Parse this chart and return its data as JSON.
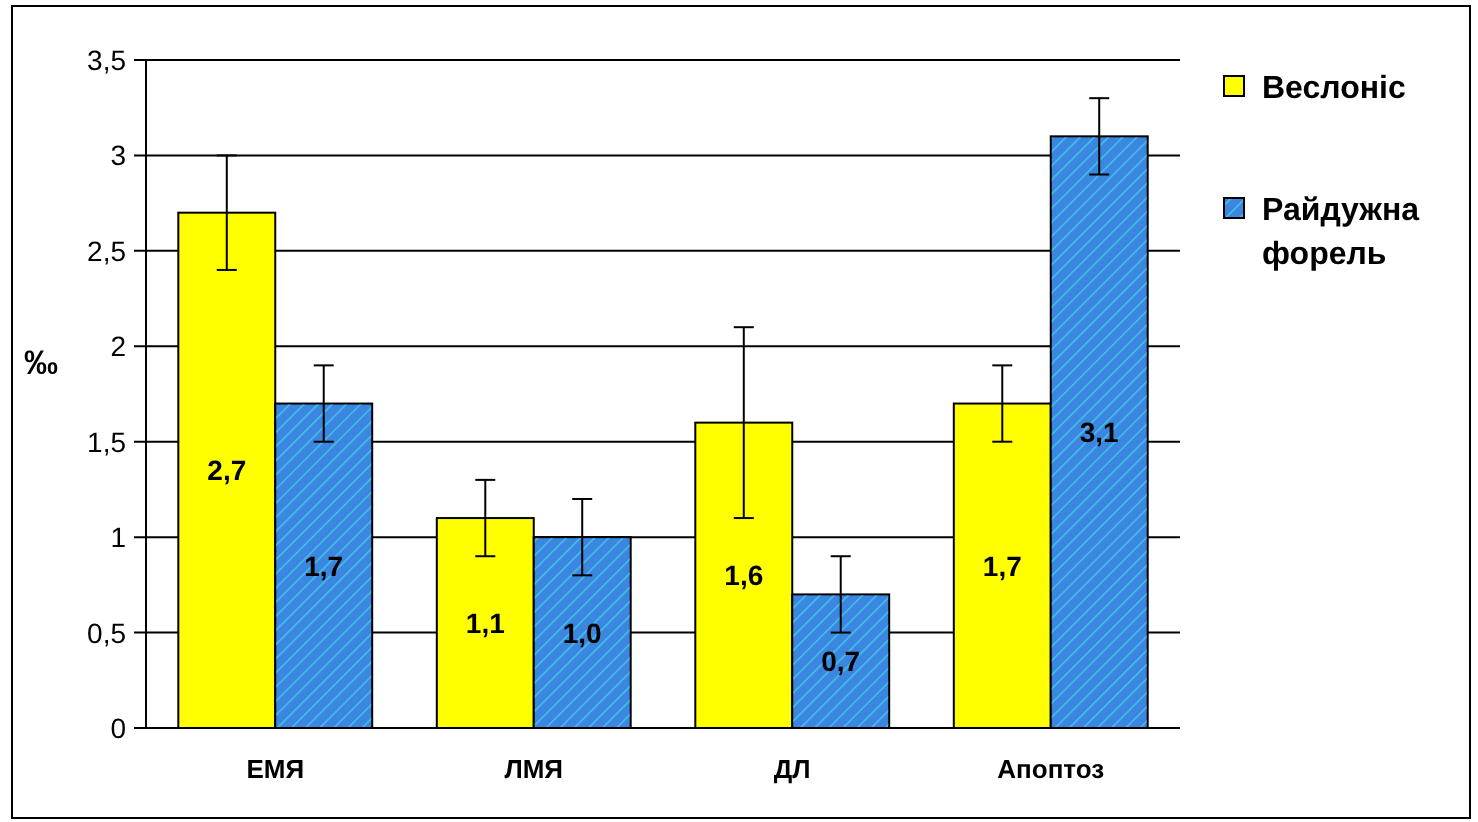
{
  "chart_data": {
    "type": "bar",
    "ylabel": "‰",
    "categories": [
      "ЕМЯ",
      "ЛМЯ",
      "ДЛ",
      "Апоптоз"
    ],
    "series": [
      {
        "name": "Веслоніс",
        "color": "#ffff00",
        "values": [
          2.7,
          1.1,
          1.6,
          1.7
        ],
        "errors": [
          0.3,
          0.2,
          0.5,
          0.2
        ],
        "value_labels": [
          "2,7",
          "1,1",
          "1,6",
          "1,7"
        ]
      },
      {
        "name": "Райдужна форель",
        "color": "#3a86e0",
        "values": [
          1.7,
          1.0,
          0.7,
          3.1
        ],
        "errors": [
          0.2,
          0.2,
          0.2,
          0.2
        ],
        "value_labels": [
          "1,7",
          "1,0",
          "0,7",
          "3,1"
        ]
      }
    ],
    "ylim": [
      0,
      3.5
    ],
    "yticks": [
      0,
      {
        "value": 0.5,
        "label": "0,5"
      },
      1,
      {
        "value": 1.5,
        "label": "1,5"
      },
      2,
      {
        "value": 2.5,
        "label": "2,5"
      },
      3,
      {
        "value": 3.5,
        "label": "3,5"
      }
    ],
    "grid": "y",
    "legend": "top right"
  }
}
